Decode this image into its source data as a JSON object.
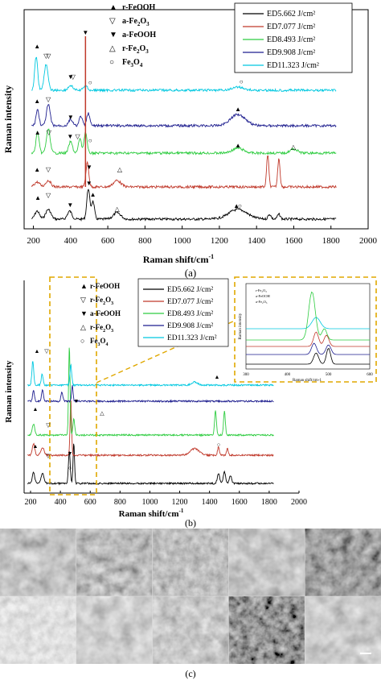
{
  "chart_data": [
    {
      "panel": "a",
      "type": "line",
      "xlabel": "Raman shift/cm",
      "xlabel_sup": "-1",
      "ylabel": "Raman intensity",
      "xlim": [
        150,
        2000
      ],
      "xticks": [
        "200",
        "400",
        "600",
        "800",
        "1000",
        "1200",
        "1400",
        "1600",
        "1800",
        "2000"
      ],
      "caption": "(a)",
      "marker_legend": [
        {
          "symbol": "▲",
          "base": "r-FeOOH",
          "sub": "",
          "tail": ""
        },
        {
          "symbol": "▽",
          "base": "a-Fe",
          "sub": "2",
          "tail": "O",
          "sub2": "3"
        },
        {
          "symbol": "▼",
          "base": "a-FeOOH",
          "sub": "",
          "tail": ""
        },
        {
          "symbol": "△",
          "base": "r-Fe",
          "sub": "2",
          "tail": "O",
          "sub2": "3"
        },
        {
          "symbol": "○",
          "base": "Fe",
          "sub": "3",
          "tail": "O",
          "sub2": "4"
        }
      ],
      "series": [
        {
          "name": "ED5.662 J/cm²",
          "color": "#000000",
          "baseline": 272,
          "peaks": [
            [
              220,
              10,
              12
            ],
            [
              280,
              12,
              14
            ],
            [
              395,
              10,
              12
            ],
            [
              495,
              38,
              8
            ],
            [
              520,
              22,
              8
            ],
            [
              650,
              8,
              20
            ],
            [
              1300,
              12,
              50
            ],
            [
              1470,
              6,
              8
            ],
            [
              1520,
              6,
              8
            ]
          ]
        },
        {
          "name": "ED7.077 J/cm²",
          "color": "#c0392b",
          "baseline": 232,
          "peaks": [
            [
              220,
              6,
              14
            ],
            [
              280,
              8,
              14
            ],
            [
              490,
              30,
              8
            ],
            [
              650,
              8,
              20
            ],
            [
              1460,
              40,
              6
            ],
            [
              1520,
              36,
              6
            ]
          ]
        },
        {
          "name": "ED8.493 J/cm²",
          "color": "#2ecc40",
          "baseline": 190,
          "peaks": [
            [
              222,
              26,
              8
            ],
            [
              280,
              30,
              10
            ],
            [
              400,
              14,
              10
            ],
            [
              450,
              18,
              8
            ],
            [
              480,
              26,
              8
            ],
            [
              1300,
              6,
              30
            ],
            [
              1600,
              5,
              20
            ]
          ]
        },
        {
          "name": "ED9.908 J/cm²",
          "color": "#1f1f8f",
          "baseline": 156,
          "peaks": [
            [
              222,
              20,
              8
            ],
            [
              280,
              26,
              10
            ],
            [
              400,
              8,
              10
            ],
            [
              455,
              12,
              8
            ],
            [
              495,
              16,
              8
            ],
            [
              1300,
              14,
              40
            ]
          ]
        },
        {
          "name": "ED11.323 J/cm²",
          "color": "#00c8e0",
          "baseline": 112,
          "peaks": [
            [
              215,
              42,
              8
            ],
            [
              268,
              32,
              10
            ],
            [
              400,
              6,
              12
            ],
            [
              480,
              6,
              10
            ],
            [
              1300,
              4,
              30
            ]
          ]
        }
      ],
      "spike": {
        "x": 480,
        "color": "#c0392b",
        "top": 45
      }
    },
    {
      "panel": "b",
      "type": "line",
      "xlabel": "Raman shift/cm",
      "xlabel_sup": "-1",
      "ylabel": "Raman intensity",
      "xlim": [
        150,
        2000
      ],
      "xticks": [
        "200",
        "400",
        "600",
        "800",
        "1000",
        "1200",
        "1400",
        "1600",
        "1800",
        "2000"
      ],
      "caption": "(b)",
      "marker_legend": [
        {
          "symbol": "▲",
          "base": "r-FeOOH",
          "sub": "",
          "tail": ""
        },
        {
          "symbol": "▽",
          "base": "r-Fe",
          "sub": "2",
          "tail": "O",
          "sub2": "3"
        },
        {
          "symbol": "▼",
          "base": "a-FeOOH",
          "sub": "",
          "tail": ""
        },
        {
          "symbol": "△",
          "base": "r-Fe",
          "sub": "2",
          "tail": "O",
          "sub2": "3"
        },
        {
          "symbol": "○",
          "base": "Fe",
          "sub": "3",
          "tail": "O",
          "sub2": "4"
        }
      ],
      "series": [
        {
          "name": "ED5.662 J/cm²",
          "color": "#000000",
          "baseline": 600
        },
        {
          "name": "ED7.077 J/cm²",
          "color": "#c0392b",
          "baseline": 565
        },
        {
          "name": "ED8.493 J/cm²",
          "color": "#2ecc40",
          "baseline": 540
        },
        {
          "name": "ED9.908 J/cm²",
          "color": "#1f1f8f",
          "baseline": 498
        },
        {
          "name": "ED11.323 J/cm²",
          "color": "#00c8e0",
          "baseline": 478
        }
      ],
      "inset": {
        "xticks": [
          "300",
          "400",
          "500",
          "600"
        ],
        "xlabel": "Raman shift/cm-1",
        "ylabel": "Raman intensity",
        "legend": [
          "r-Fe₂O₃",
          "a-FeOOH",
          "a-Fe₂O₃"
        ]
      }
    }
  ],
  "panel_c": {
    "caption": "(c)",
    "rows": 2,
    "cols": 5
  }
}
